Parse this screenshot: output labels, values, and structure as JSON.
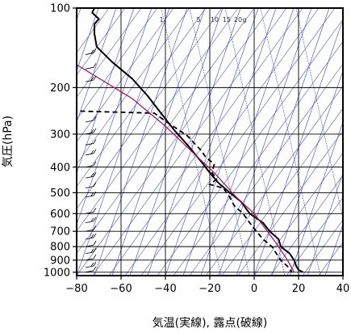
{
  "chart_data": {
    "type": "line",
    "chart_kind": "skew-T log-P",
    "xlabel": "気温(実線), 露点(破線)",
    "ylabel": "気圧(hPa)",
    "xlim": [
      -80,
      40
    ],
    "ylim": [
      1030,
      100
    ],
    "y_scale": "log",
    "x_ticks": [
      "−80",
      "−60",
      "−40",
      "−20",
      "0",
      "20",
      "40"
    ],
    "x_tick_values": [
      -80,
      -60,
      -40,
      -20,
      0,
      20,
      40
    ],
    "y_ticks": [
      "100",
      "200",
      "300",
      "400",
      "500",
      "600",
      "700",
      "800",
      "900",
      "1000"
    ],
    "y_tick_values": [
      100,
      200,
      300,
      400,
      500,
      600,
      700,
      800,
      900,
      1000
    ],
    "mixing_ratio_labels": [
      "1",
      "5",
      "10",
      "15",
      "20",
      "g"
    ],
    "mixing_ratio_values": [
      1,
      5,
      10,
      15,
      20
    ],
    "colors": {
      "temperature": "#000000",
      "dewpoint": "#000000",
      "parcel": "#b0185a",
      "background_lines": "#3344ee",
      "grid": "#000000"
    },
    "series": [
      {
        "style": "solid",
        "points": [
          [
            -72,
            100
          ],
          [
            -73,
            104
          ],
          [
            -70,
            110
          ],
          [
            -72,
            115
          ],
          [
            -72,
            125
          ],
          [
            -71,
            140
          ],
          [
            -64,
            160
          ],
          [
            -55,
            185
          ],
          [
            -48,
            215
          ],
          [
            -42,
            250
          ],
          [
            -36,
            290
          ],
          [
            -30,
            330
          ],
          [
            -24,
            380
          ],
          [
            -20,
            420
          ],
          [
            -16,
            460
          ],
          [
            -11,
            500
          ],
          [
            -6,
            540
          ],
          [
            -2,
            600
          ],
          [
            4,
            650
          ],
          [
            7,
            700
          ],
          [
            11,
            750
          ],
          [
            12,
            800
          ],
          [
            16,
            850
          ],
          [
            18,
            900
          ],
          [
            19,
            950
          ],
          [
            20,
            980
          ],
          [
            22,
            1000
          ]
        ]
      },
      {
        "style": "dashed",
        "points": [
          [
            -82,
            245
          ],
          [
            -60,
            248
          ],
          [
            -45,
            250
          ],
          [
            -40,
            268
          ],
          [
            -36,
            282
          ],
          [
            -30,
            305
          ],
          [
            -27,
            325
          ],
          [
            -24,
            345
          ],
          [
            -22,
            365
          ],
          [
            -18,
            390
          ],
          [
            -19,
            420
          ],
          [
            -17,
            445
          ],
          [
            -20,
            465
          ],
          [
            -14,
            480
          ],
          [
            -11,
            520
          ],
          [
            -9,
            560
          ],
          [
            -5,
            600
          ],
          [
            -2,
            650
          ],
          [
            1,
            700
          ],
          [
            4,
            750
          ],
          [
            8,
            800
          ],
          [
            10,
            850
          ],
          [
            12,
            900
          ],
          [
            15,
            950
          ],
          [
            17,
            1000
          ]
        ]
      },
      {
        "style": "parcel",
        "points": [
          [
            -82,
            160
          ],
          [
            -55,
            220
          ],
          [
            -40,
            280
          ],
          [
            -28,
            350
          ],
          [
            -18,
            420
          ],
          [
            -8,
            520
          ],
          [
            0,
            600
          ],
          [
            6,
            700
          ],
          [
            11,
            800
          ],
          [
            15,
            900
          ],
          [
            18,
            1000
          ]
        ]
      }
    ],
    "wind_barbs_note": "wind barbs along left edge, one per level"
  }
}
